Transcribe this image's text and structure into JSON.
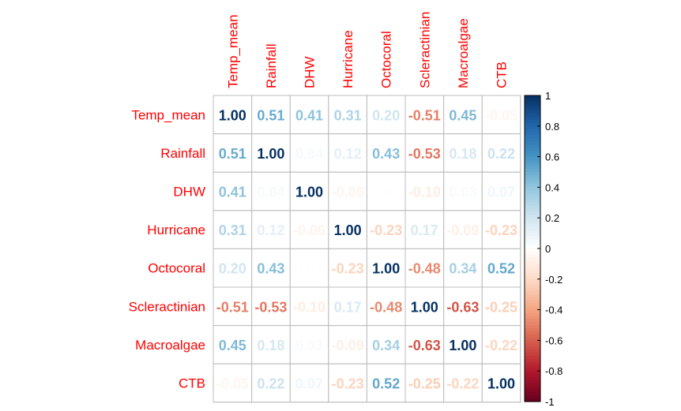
{
  "chart_data": {
    "type": "heatmap",
    "variables": [
      "Temp_mean",
      "Rainfall",
      "DHW",
      "Hurricane",
      "Octocoral",
      "Scleractinian",
      "Macroalgae",
      "CTB"
    ],
    "matrix": [
      [
        1.0,
        0.51,
        0.41,
        0.31,
        0.2,
        -0.51,
        0.45,
        -0.05
      ],
      [
        0.51,
        1.0,
        0.04,
        0.12,
        0.43,
        -0.53,
        0.18,
        0.22
      ],
      [
        0.41,
        0.04,
        1.0,
        -0.06,
        0.01,
        -0.1,
        0.03,
        0.07
      ],
      [
        0.31,
        0.12,
        -0.06,
        1.0,
        -0.23,
        0.17,
        -0.09,
        -0.23
      ],
      [
        0.2,
        0.43,
        0.01,
        -0.23,
        1.0,
        -0.48,
        0.34,
        0.52
      ],
      [
        -0.51,
        -0.53,
        -0.1,
        0.17,
        -0.48,
        1.0,
        -0.63,
        -0.25
      ],
      [
        0.45,
        0.18,
        0.03,
        -0.09,
        0.34,
        -0.63,
        1.0,
        -0.22
      ],
      [
        -0.05,
        0.22,
        0.07,
        -0.23,
        0.52,
        -0.25,
        -0.22,
        1.0
      ]
    ],
    "colorbar": {
      "range": [
        -1,
        1
      ],
      "ticks": [
        "1",
        "0.8",
        "0.6",
        "0.4",
        "0.2",
        "0",
        "-0.2",
        "-0.4",
        "-0.6",
        "-0.8",
        "-1"
      ]
    },
    "label_color": "#ff0000",
    "grid": true
  }
}
